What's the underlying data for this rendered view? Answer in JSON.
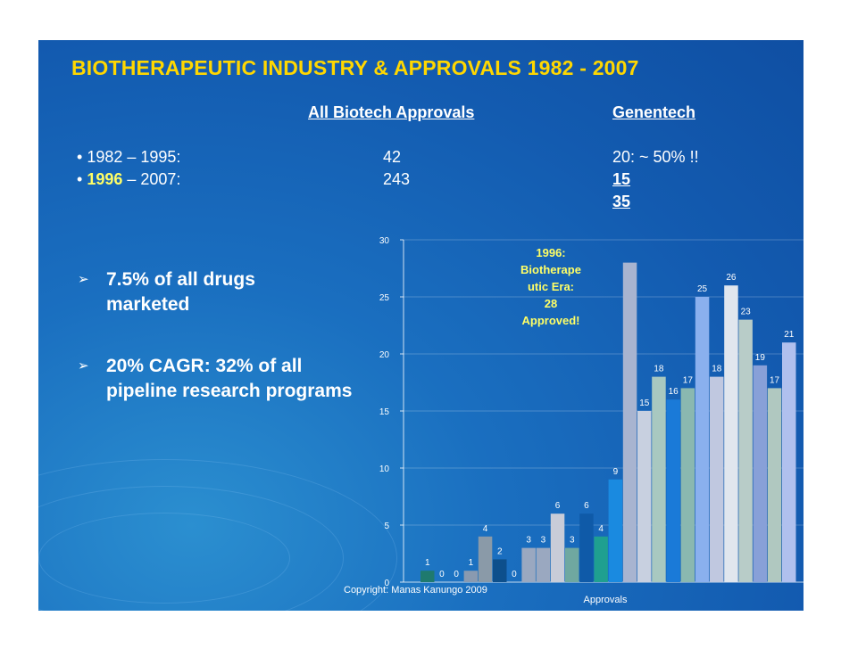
{
  "slide": {
    "title": "BIOTHERAPEUTIC INDUSTRY & APPROVALS 1982 - 2007",
    "headers": {
      "all": "All Biotech Approvals",
      "genentech": "Genentech"
    },
    "rows": [
      {
        "bullet": "•",
        "year": "1982",
        "range": " – 1995:",
        "all": "42",
        "genentech": "20:  ~ 50% !!"
      },
      {
        "bullet": "•",
        "year": "1996",
        "range": " – 2007:",
        "all": "243",
        "genentech": "15"
      }
    ],
    "genentech_total": "35",
    "bullets": [
      {
        "arrow": "➢",
        "text": "7.5% of all drugs marketed"
      },
      {
        "arrow": "➢",
        "text": "20% CAGR: 32% of all pipeline research programs"
      }
    ],
    "copyright": "Copyright: Manas Kanungo 2009"
  },
  "chart_data": {
    "type": "bar",
    "xlabel": "Approvals",
    "ylabel": "",
    "ylim": [
      0,
      30
    ],
    "yticks": [
      0,
      5,
      10,
      15,
      20,
      25,
      30
    ],
    "annotation": [
      "1996:",
      "Biotherape",
      "utic Era:",
      "28",
      "Approved!"
    ],
    "annotation_color": "#ffff66",
    "values": [
      1,
      0,
      0,
      1,
      4,
      2,
      0,
      3,
      3,
      6,
      3,
      6,
      4,
      9,
      28,
      15,
      18,
      16,
      17,
      25,
      18,
      26,
      23,
      19,
      17,
      21
    ],
    "labels": [
      "1",
      "0",
      "0",
      "1",
      "4",
      "2",
      "0",
      "3",
      "3",
      "6",
      "3",
      "6",
      "4",
      "9",
      "",
      "15",
      "18",
      "16",
      "17",
      "25",
      "18",
      "26",
      "23",
      "19",
      "17",
      "21"
    ],
    "colors": [
      "#1f7a6e",
      "#4a8aa8",
      "#6a8ab0",
      "#8a9ab0",
      "#8a9aa8",
      "#0d4f8c",
      "#2a6aa8",
      "#9aa8c0",
      "#9aa8c0",
      "#c8ccd8",
      "#6fa8a0",
      "#0f5aa8",
      "#1fa090",
      "#1a8ae0",
      "#a8b4d0",
      "#c8d0e0",
      "#a8c8c0",
      "#1a7ad8",
      "#8ab8b0",
      "#8ab0ee",
      "#c0c8e0",
      "#e0e6ee",
      "#b8ccc8",
      "#88a0d8",
      "#b0c8c0",
      "#b0c0ee"
    ]
  }
}
